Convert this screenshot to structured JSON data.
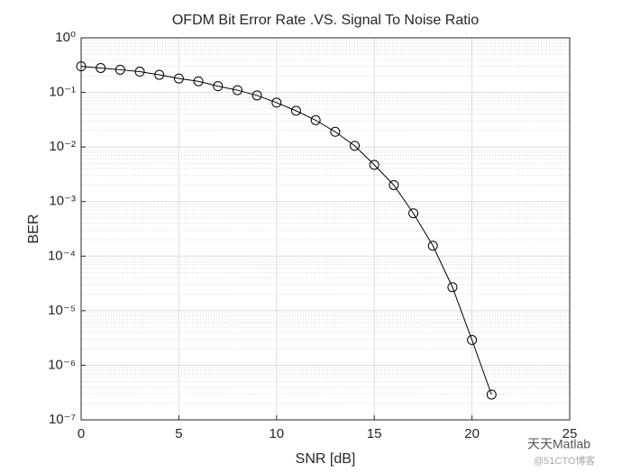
{
  "chart_data": {
    "type": "line",
    "title": "OFDM Bit Error Rate .VS. Signal To Noise Ratio",
    "xlabel": "SNR [dB]",
    "ylabel": "BER",
    "x": [
      0,
      1,
      2,
      3,
      4,
      5,
      6,
      7,
      8,
      9,
      10,
      11,
      12,
      13,
      14,
      15,
      16,
      17,
      18,
      19,
      20,
      21
    ],
    "series": [
      {
        "color": "#000000",
        "marker": "circle",
        "values": [
          0.3,
          0.28,
          0.26,
          0.24,
          0.21,
          0.18,
          0.16,
          0.13,
          0.11,
          0.088,
          0.065,
          0.046,
          0.031,
          0.019,
          0.0105,
          0.0047,
          0.002,
          0.00061,
          0.000155,
          2.7e-05,
          2.9e-06,
          2.9e-07
        ]
      }
    ],
    "xlim": [
      0,
      25
    ],
    "xticks": [
      0,
      5,
      10,
      15,
      20,
      25
    ],
    "ylim": [
      1e-07,
      1
    ],
    "yscale": "log",
    "yticks": [
      {
        "value": 1,
        "label": "10⁰"
      },
      {
        "value": 0.1,
        "label": "10⁻¹"
      },
      {
        "value": 0.01,
        "label": "10⁻²"
      },
      {
        "value": 0.001,
        "label": "10⁻³"
      },
      {
        "value": 0.0001,
        "label": "10⁻⁴"
      },
      {
        "value": 1e-05,
        "label": "10⁻⁵"
      },
      {
        "value": 1e-06,
        "label": "10⁻⁶"
      },
      {
        "value": 1e-07,
        "label": "10⁻⁷"
      }
    ],
    "grid": true,
    "minor_grid": true
  },
  "watermark": {
    "line1": "天天Matlab",
    "line2": "@51CTO博客"
  }
}
